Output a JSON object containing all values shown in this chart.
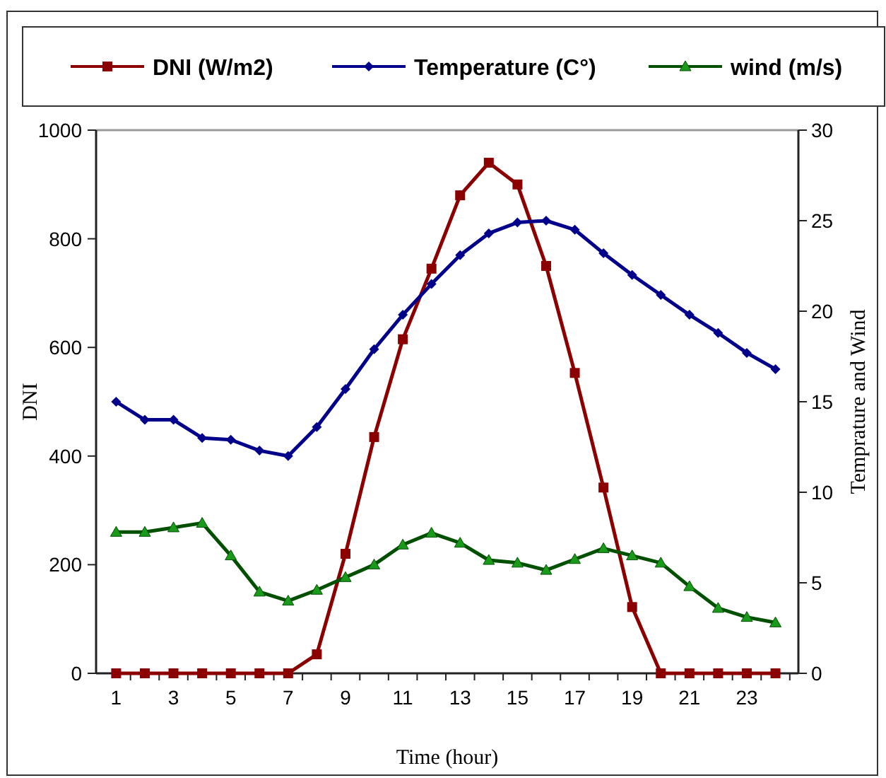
{
  "chart_data": {
    "type": "line",
    "xlabel": "Time (hour)",
    "ylabel": "DNI",
    "y2label": "Temprature and Wind",
    "x": [
      1,
      2,
      3,
      4,
      5,
      6,
      7,
      8,
      9,
      10,
      11,
      12,
      13,
      14,
      15,
      16,
      17,
      18,
      19,
      20,
      21,
      22,
      23,
      24
    ],
    "xlim": [
      0.3,
      24.8
    ],
    "xticks": [
      1,
      3,
      5,
      7,
      9,
      11,
      13,
      15,
      17,
      19,
      21,
      23
    ],
    "ylim": [
      0,
      1000
    ],
    "yticks": [
      0,
      200,
      400,
      600,
      800,
      1000
    ],
    "y2lim": [
      0,
      30
    ],
    "y2ticks": [
      0,
      5,
      10,
      15,
      20,
      25,
      30
    ],
    "series": [
      {
        "name": "DNI (W/m2)",
        "color": "#8b0000",
        "marker": "square",
        "values": [
          0,
          0,
          0,
          0,
          0,
          0,
          0,
          35,
          220,
          435,
          615,
          745,
          880,
          940,
          900,
          750,
          553,
          342,
          122,
          0,
          0,
          0,
          0,
          0
        ]
      },
      {
        "name": "Temperature (C°)",
        "color": "#00008b",
        "marker": "diamond",
        "axis": "y2",
        "values": [
          15.0,
          14.0,
          14.0,
          13.0,
          12.9,
          12.3,
          12.0,
          13.6,
          15.7,
          17.9,
          19.8,
          21.5,
          23.1,
          24.3,
          24.9,
          25.0,
          24.5,
          23.2,
          22.0,
          20.9,
          19.8,
          18.8,
          17.7,
          16.8
        ]
      },
      {
        "name": "wind (m/s)",
        "color": "#005000",
        "marker": "triangle",
        "axis": "y2",
        "values": [
          7.8,
          7.8,
          8.05,
          8.3,
          6.5,
          4.5,
          4.0,
          4.6,
          5.3,
          6.0,
          7.1,
          7.75,
          7.2,
          6.25,
          6.1,
          5.7,
          6.3,
          6.9,
          6.5,
          6.1,
          4.8,
          3.6,
          3.1,
          2.8
        ]
      }
    ],
    "legend": "top",
    "grid": false,
    "line_style": "solid"
  }
}
